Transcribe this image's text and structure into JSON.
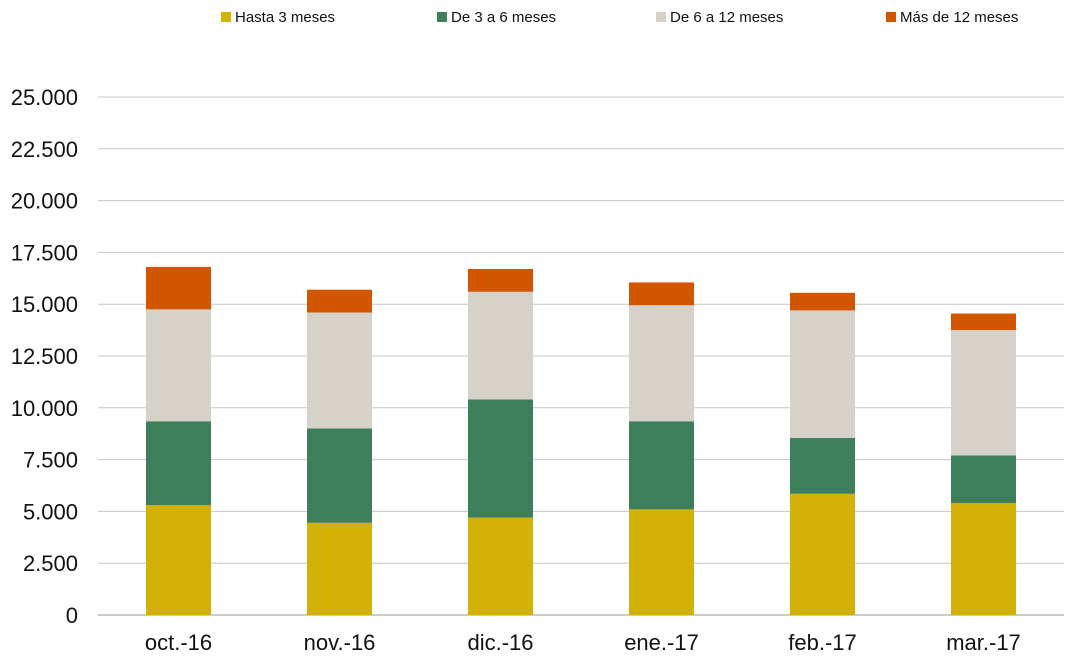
{
  "chart_data": {
    "type": "bar",
    "stacked": true,
    "title": "",
    "xlabel": "",
    "ylabel": "",
    "categories": [
      "oct.-16",
      "nov.-16",
      "dic.-16",
      "ene.-17",
      "feb.-17",
      "mar.-17"
    ],
    "ylim": [
      0,
      25000
    ],
    "yticks": [
      0,
      2500,
      5000,
      7500,
      10000,
      12500,
      15000,
      17500,
      20000,
      22500,
      25000
    ],
    "ytick_labels": [
      "0",
      "2.500",
      "5.000",
      "7.500",
      "10.000",
      "12.500",
      "15.000",
      "17.500",
      "20.000",
      "22.500",
      "25.000"
    ],
    "grid": true,
    "legend_position": "top",
    "series": [
      {
        "name": "Hasta 3 meses",
        "color": "#D4B106",
        "values": [
          5300,
          4450,
          4700,
          5100,
          5850,
          5400
        ]
      },
      {
        "name": "De 3 a 6 meses",
        "color": "#3D7F5B",
        "values": [
          4050,
          4550,
          5700,
          4250,
          2700,
          2300
        ]
      },
      {
        "name": "De 6 a 12 meses",
        "color": "#D6D2CA",
        "values": [
          5400,
          5600,
          5200,
          5600,
          6150,
          6050
        ]
      },
      {
        "name": "Más de 12 meses",
        "color": "#D25500",
        "values": [
          2050,
          1100,
          1100,
          1100,
          850,
          800
        ]
      }
    ]
  }
}
